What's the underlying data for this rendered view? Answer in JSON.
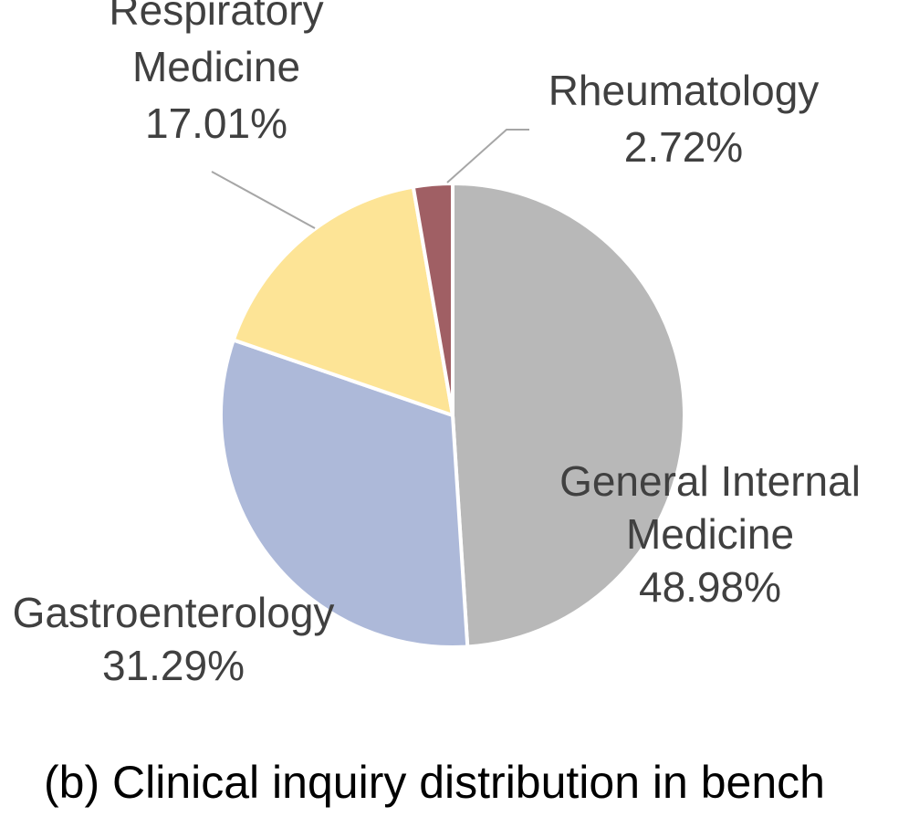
{
  "chart_data": {
    "type": "pie",
    "title": "",
    "slices": [
      {
        "category": "General Internal Medicine",
        "label_lines": [
          "General Internal",
          "Medicine"
        ],
        "value": 48.98,
        "value_label": "48.98%",
        "color": "#b8b8b8"
      },
      {
        "category": "Gastroenterology",
        "label_lines": [
          "Gastroenterology"
        ],
        "value": 31.29,
        "value_label": "31.29%",
        "color": "#adb9d9"
      },
      {
        "category": "Respiratory Medicine",
        "label_lines": [
          "Respiratory",
          "Medicine"
        ],
        "value": 17.01,
        "value_label": "17.01%",
        "color": "#fde496"
      },
      {
        "category": "Rheumatology",
        "label_lines": [
          "Rheumatology"
        ],
        "value": 2.72,
        "value_label": "2.72%",
        "color": "#a05f64"
      }
    ],
    "start_angle_deg": 0,
    "direction": "clockwise",
    "legend": "none"
  },
  "caption": "(b) Clinical inquiry distribution in bench"
}
